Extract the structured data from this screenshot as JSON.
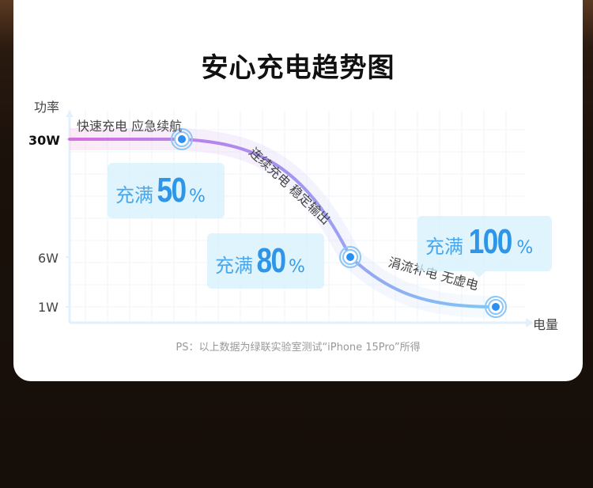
{
  "title": "安心充电趋势图",
  "footnote": "PS：以上数据为绿联实验室测试“iPhone 15Pro”所得",
  "chart_data": {
    "type": "line",
    "title": "安心充电趋势图",
    "ylabel": "功率",
    "xlabel": "电量",
    "y_ticks": [
      "30W",
      "6W",
      "1W"
    ],
    "y_tick_values": [
      30,
      6,
      1
    ],
    "grid": true,
    "points": [
      {
        "charge": 50,
        "power": 30,
        "callout": {
          "prefix": "充满",
          "value": "50",
          "unit": "%"
        }
      },
      {
        "charge": 80,
        "power": 6,
        "callout": {
          "prefix": "充满",
          "value": "80",
          "unit": "%"
        }
      },
      {
        "charge": 100,
        "power": 1,
        "callout": {
          "prefix": "充满",
          "value": "100",
          "unit": "%"
        }
      }
    ],
    "annotations": [
      "快速充电 应急续航",
      "连续充电 稳定输出",
      "涓流补电 无虚电"
    ],
    "colors": {
      "start": "#d46fe0",
      "mid": "#a98ef0",
      "end": "#7cc8f4",
      "marker": "#2a8ff0"
    }
  }
}
